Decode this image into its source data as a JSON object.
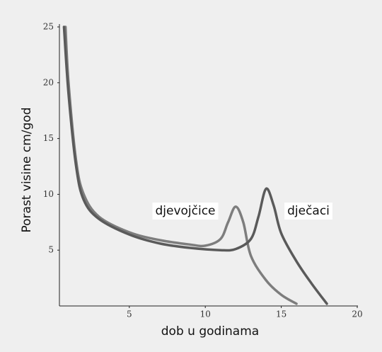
{
  "chart_data": {
    "type": "line",
    "xlabel": "dob u godinama",
    "ylabel": "Porast visine cm/god",
    "xlim": [
      0.4,
      20
    ],
    "ylim": [
      0,
      25
    ],
    "xticks": [
      5,
      10,
      15,
      20
    ],
    "yticks": [
      5,
      10,
      15,
      20,
      25
    ],
    "annotations": [
      "djevojčice",
      "dječaci"
    ],
    "series": [
      {
        "name": "djevojčice",
        "color": "#7d7d7d",
        "x": [
          0.8,
          1,
          1.5,
          2,
          3,
          5,
          7,
          9,
          10,
          11,
          11.5,
          12,
          12.5,
          13,
          14,
          15,
          16
        ],
        "values": [
          25,
          20,
          13,
          10,
          8,
          6.6,
          5.9,
          5.5,
          5.4,
          6,
          7.5,
          8.9,
          7.5,
          4.5,
          2.3,
          1,
          0.2
        ]
      },
      {
        "name": "dječaci",
        "color": "#5a5a5a",
        "x": [
          0.7,
          1,
          1.5,
          2,
          3,
          5,
          7,
          9,
          11,
          12,
          13,
          13.5,
          14,
          14.5,
          15,
          16,
          17,
          18
        ],
        "values": [
          25,
          19,
          12.5,
          9.5,
          7.8,
          6.4,
          5.6,
          5.2,
          5,
          5.1,
          6,
          8,
          10.5,
          9,
          6.5,
          4,
          2,
          0.2
        ]
      }
    ]
  }
}
